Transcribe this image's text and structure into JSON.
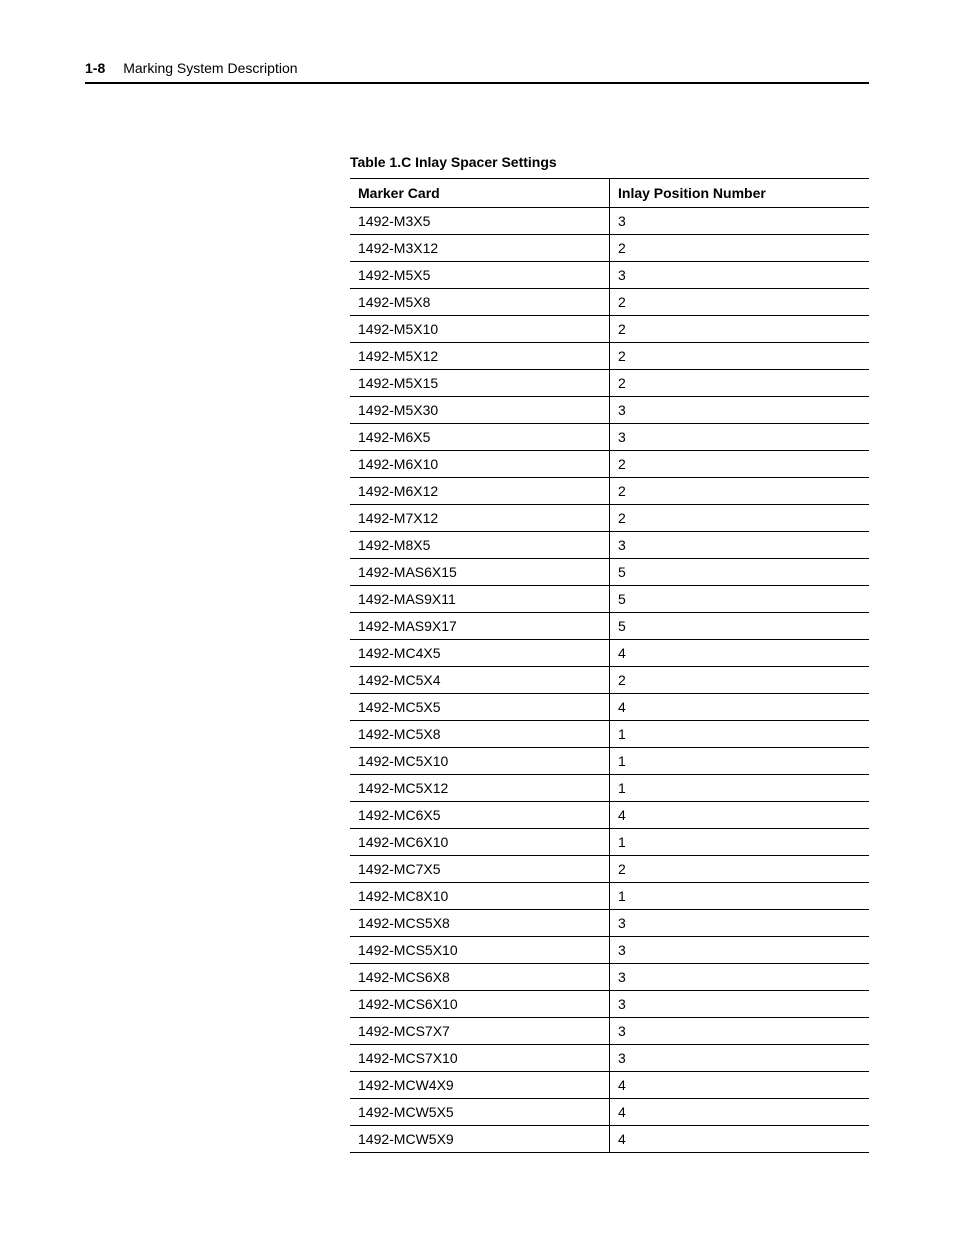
{
  "header": {
    "page_number": "1-8",
    "section_title": "Marking System Description"
  },
  "table": {
    "caption": "Table 1.C Inlay Spacer Settings",
    "columns": [
      "Marker Card",
      "Inlay Position Number"
    ],
    "rows": [
      [
        "1492-M3X5",
        "3"
      ],
      [
        "1492-M3X12",
        "2"
      ],
      [
        "1492-M5X5",
        "3"
      ],
      [
        "1492-M5X8",
        "2"
      ],
      [
        "1492-M5X10",
        "2"
      ],
      [
        "1492-M5X12",
        "2"
      ],
      [
        "1492-M5X15",
        "2"
      ],
      [
        "1492-M5X30",
        "3"
      ],
      [
        "1492-M6X5",
        "3"
      ],
      [
        "1492-M6X10",
        "2"
      ],
      [
        "1492-M6X12",
        "2"
      ],
      [
        "1492-M7X12",
        "2"
      ],
      [
        "1492-M8X5",
        "3"
      ],
      [
        "1492-MAS6X15",
        "5"
      ],
      [
        "1492-MAS9X11",
        "5"
      ],
      [
        "1492-MAS9X17",
        "5"
      ],
      [
        "1492-MC4X5",
        "4"
      ],
      [
        "1492-MC5X4",
        "2"
      ],
      [
        "1492-MC5X5",
        "4"
      ],
      [
        "1492-MC5X8",
        "1"
      ],
      [
        "1492-MC5X10",
        "1"
      ],
      [
        "1492-MC5X12",
        "1"
      ],
      [
        "1492-MC6X5",
        "4"
      ],
      [
        "1492-MC6X10",
        "1"
      ],
      [
        "1492-MC7X5",
        "2"
      ],
      [
        "1492-MC8X10",
        "1"
      ],
      [
        "1492-MCS5X8",
        "3"
      ],
      [
        "1492-MCS5X10",
        "3"
      ],
      [
        "1492-MCS6X8",
        "3"
      ],
      [
        "1492-MCS6X10",
        "3"
      ],
      [
        "1492-MCS7X7",
        "3"
      ],
      [
        "1492-MCS7X10",
        "3"
      ],
      [
        "1492-MCW4X9",
        "4"
      ],
      [
        "1492-MCW5X5",
        "4"
      ],
      [
        "1492-MCW5X9",
        "4"
      ]
    ]
  }
}
